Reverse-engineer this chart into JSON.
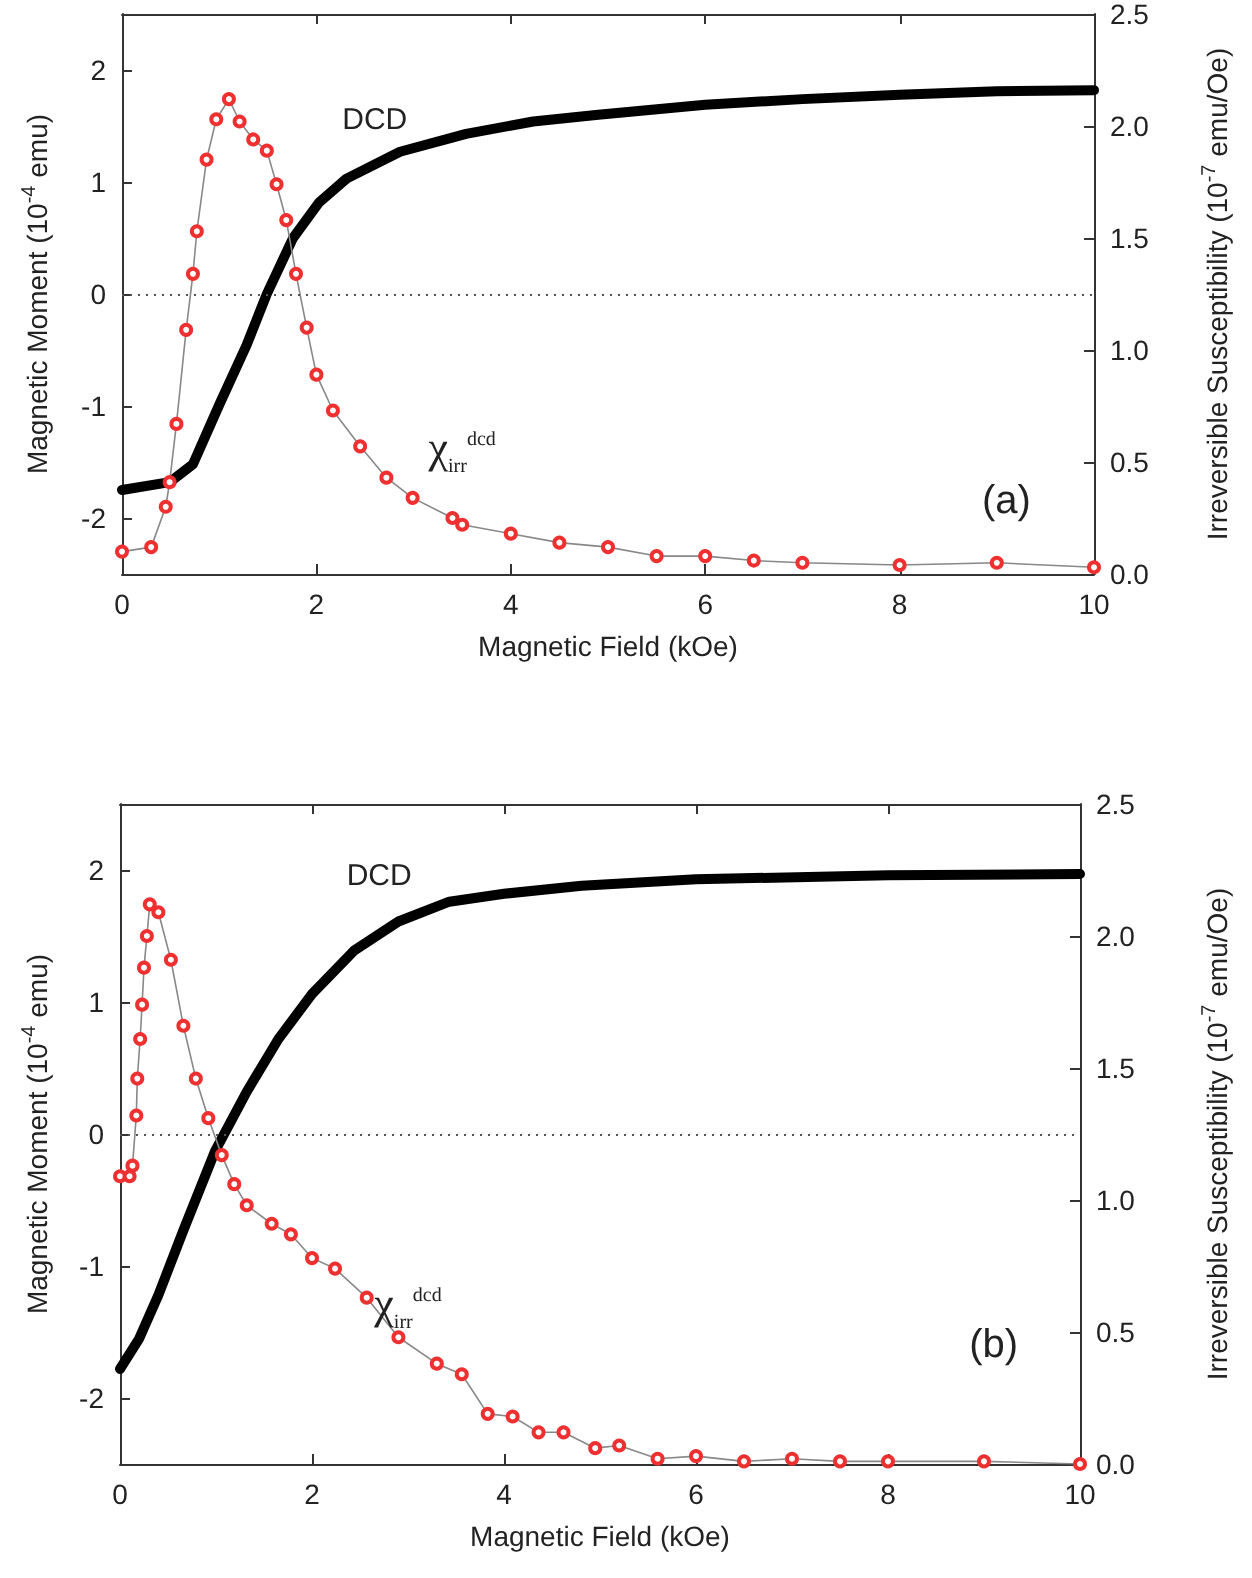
{
  "chart_data": [
    {
      "type": "line",
      "xlabel": "Magnetic Field (kOe)",
      "ylabel": "Magnetic Moment (10$^{-4}$ emu)",
      "y2label": "Irreversible Susceptibility (10$^{-7}$ emu/Oe)",
      "xlim": [
        0,
        10
      ],
      "xticks": [
        0,
        2,
        4,
        6,
        8,
        10
      ],
      "ylim": [
        -2.5,
        2.5
      ],
      "yticks": [
        -2,
        -1,
        0,
        1,
        2
      ],
      "y2lim": [
        0,
        2.5
      ],
      "y2ticks": [
        {
          "value": 0,
          "label": "0.0"
        },
        0.5,
        {
          "value": 1,
          "label": "1.0"
        },
        1.5,
        {
          "value": 2,
          "label": "2.0"
        },
        2.5
      ],
      "annotations": [
        "(a)"
      ],
      "ref_lines": [
        {
          "axis": "y",
          "value": 0,
          "color": "#555555",
          "line_style": "dotted"
        }
      ],
      "series": [
        {
          "name": "DCD",
          "color": "#000000",
          "marker": "none",
          "x": [
            0,
            0.49,
            0.73,
            1.0,
            1.28,
            1.49,
            1.76,
            2.03,
            2.31,
            2.86,
            3.54,
            4.23,
            4.9,
            6.0,
            7.0,
            8.0,
            9.0,
            10.0
          ],
          "values": [
            -1.75,
            -1.68,
            -1.52,
            -0.99,
            -0.46,
            0,
            0.5,
            0.82,
            1.03,
            1.27,
            1.43,
            1.54,
            1.6,
            1.69,
            1.74,
            1.78,
            1.81,
            1.82
          ]
        },
        {
          "name": "χ$_{irr}$$^{dcd}$",
          "color": "#ee3030",
          "marker": "circle",
          "axis": "y2",
          "x": [
            0,
            0.3,
            0.45,
            0.49,
            0.56,
            0.66,
            0.73,
            0.77,
            0.87,
            0.97,
            1.1,
            1.21,
            1.35,
            1.49,
            1.59,
            1.69,
            1.79,
            1.9,
            2.0,
            2.17,
            2.45,
            2.72,
            2.99,
            3.4,
            3.5,
            4.0,
            4.5,
            5.0,
            5.5,
            6.0,
            6.5,
            7.0,
            8.0,
            9.0,
            10.0
          ],
          "values": [
            0.1,
            0.12,
            0.3,
            0.41,
            0.67,
            1.09,
            1.34,
            1.53,
            1.85,
            2.03,
            2.12,
            2.02,
            1.94,
            1.89,
            1.74,
            1.58,
            1.34,
            1.1,
            0.89,
            0.73,
            0.57,
            0.43,
            0.34,
            0.25,
            0.22,
            0.18,
            0.14,
            0.12,
            0.08,
            0.08,
            0.06,
            0.05,
            0.04,
            0.05,
            0.03
          ]
        }
      ]
    },
    {
      "type": "line",
      "xlabel": "Magnetic Field (kOe)",
      "ylabel": "Magnetic Moment (10$^{-4}$ emu)",
      "y2label": "Irreversible Susceptibility (10$^{-7}$ emu/Oe)",
      "xlim": [
        0,
        10
      ],
      "xticks": [
        0,
        2,
        4,
        6,
        8,
        10
      ],
      "ylim": [
        -2.5,
        2.5
      ],
      "yticks": [
        -2,
        -1,
        0,
        1,
        2
      ],
      "y2lim": [
        0,
        2.5
      ],
      "y2ticks": [
        {
          "value": 0,
          "label": "0.0"
        },
        0.5,
        {
          "value": 1,
          "label": "1.0"
        },
        1.5,
        {
          "value": 2,
          "label": "2.0"
        },
        2.5
      ],
      "annotations": [
        "(b)"
      ],
      "ref_lines": [
        {
          "axis": "y",
          "value": 0,
          "color": "#555555",
          "line_style": "dotted"
        }
      ],
      "series": [
        {
          "name": "DCD",
          "color": "#000000",
          "marker": "none",
          "x": [
            0,
            0.2,
            0.4,
            0.66,
            0.99,
            1.32,
            1.65,
            2.0,
            2.44,
            2.9,
            3.43,
            4.0,
            4.81,
            6.0,
            8.0,
            10.0
          ],
          "values": [
            -1.78,
            -1.55,
            -1.22,
            -0.73,
            -0.13,
            0.32,
            0.72,
            1.06,
            1.39,
            1.61,
            1.76,
            1.82,
            1.88,
            1.93,
            1.96,
            1.97
          ]
        },
        {
          "name": "χ$_{irr}$$^{dcd}$",
          "color": "#ee3030",
          "marker": "circle",
          "axis": "y2",
          "x": [
            0,
            0.1,
            0.13,
            0.17,
            0.18,
            0.21,
            0.23,
            0.25,
            0.28,
            0.31,
            0.4,
            0.53,
            0.66,
            0.79,
            0.92,
            1.06,
            1.19,
            1.32,
            1.58,
            1.78,
            2.0,
            2.24,
            2.57,
            2.9,
            3.3,
            3.56,
            3.83,
            4.09,
            4.36,
            4.62,
            4.95,
            5.2,
            5.6,
            6.0,
            6.5,
            7.0,
            7.5,
            8.0,
            9.0,
            10.0
          ],
          "values": [
            1.09,
            1.09,
            1.13,
            1.32,
            1.46,
            1.61,
            1.74,
            1.88,
            2.0,
            2.12,
            2.09,
            1.91,
            1.66,
            1.46,
            1.31,
            1.17,
            1.06,
            0.98,
            0.91,
            0.87,
            0.78,
            0.74,
            0.63,
            0.48,
            0.38,
            0.34,
            0.19,
            0.18,
            0.12,
            0.12,
            0.06,
            0.07,
            0.02,
            0.03,
            0.01,
            0.02,
            0.01,
            0.01,
            0.01,
            0.0
          ]
        }
      ]
    }
  ]
}
